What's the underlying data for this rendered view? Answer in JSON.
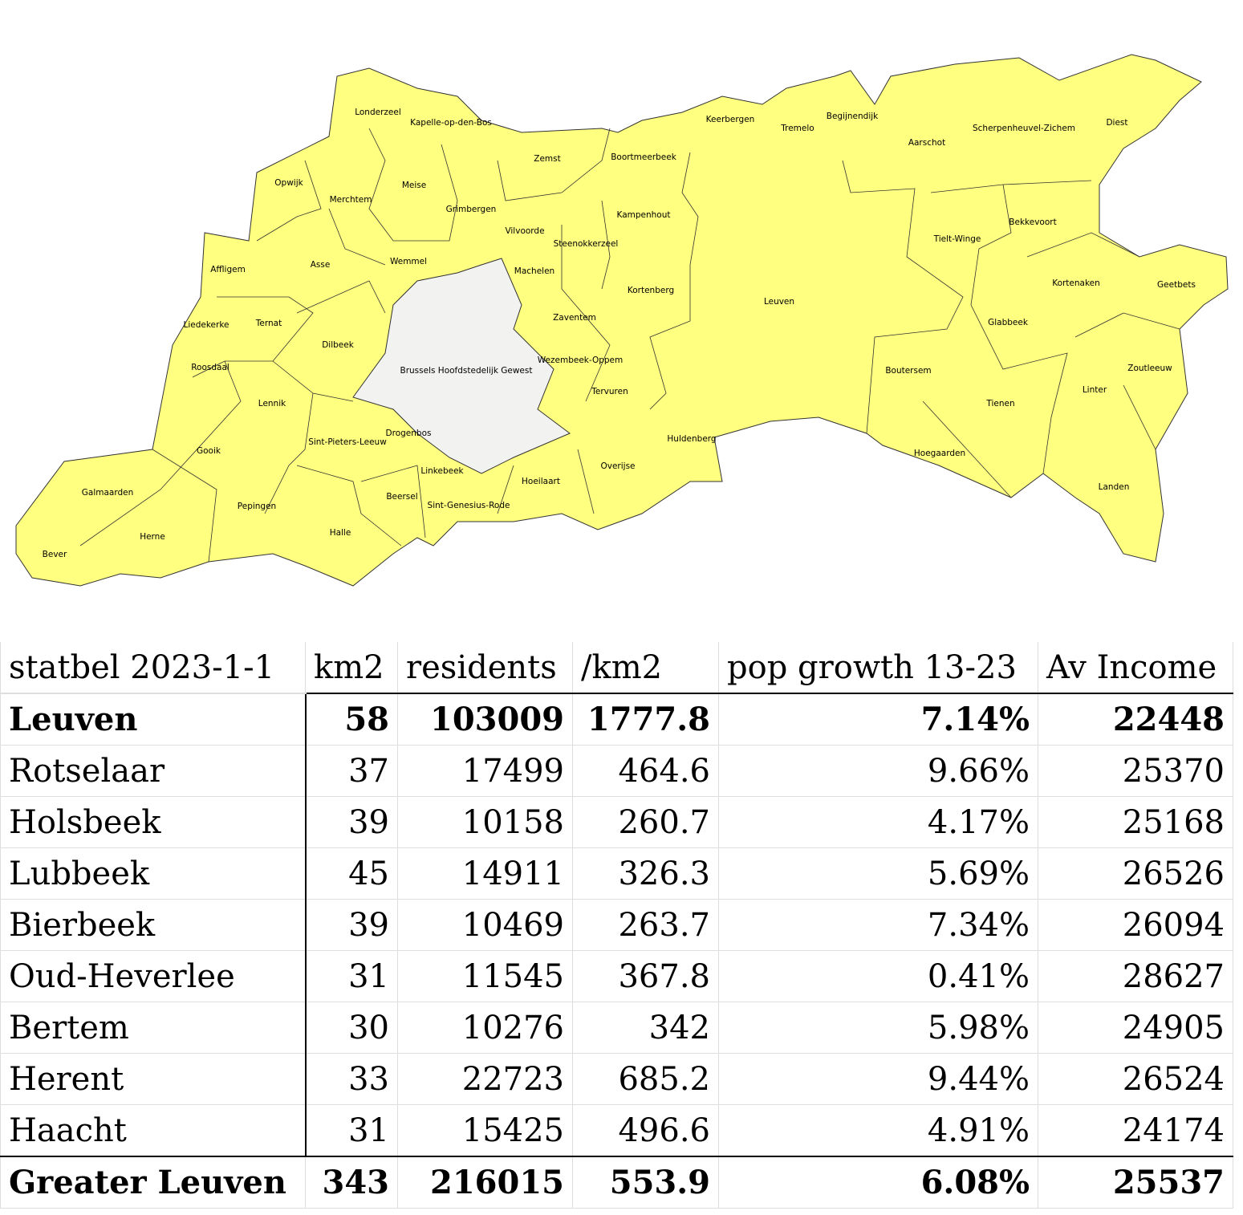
{
  "map": {
    "labels": [
      "Londerzeel",
      "Kapelle-op-den-Bos",
      "Keerbergen",
      "Tremelo",
      "Begijnendijk",
      "Aarschot",
      "Scherpenheuvel-Zichem",
      "Diest",
      "Opwijk",
      "Merchtem",
      "Meise",
      "Grimbergen",
      "Zemst",
      "Boortmeerbeek",
      "Kampenhout",
      "Vilvoorde",
      "Steenokkerzeel",
      "Tielt-Winge",
      "Bekkevoort",
      "Affligem",
      "Asse",
      "Wemmel",
      "Machelen",
      "Kortenberg",
      "Leuven",
      "Kortenaken",
      "Geetbets",
      "Liedekerke",
      "Ternat",
      "Dilbeek",
      "Zaventem",
      "Glabbeek",
      "Brussels Hoofdstedelijk Gewest",
      "Wezembeek-Oppem",
      "Roosdaal",
      "Boutersem",
      "Zoutleeuw",
      "Lennik",
      "Tervuren",
      "Linter",
      "Tienen",
      "Drogenbos",
      "Huldenberg",
      "Sint-Pieters-Leeuw",
      "Gooik",
      "Hoegaarden",
      "Linkebeek",
      "Overijse",
      "Hoeilaart",
      "Landen",
      "Galmaarden",
      "Beersel",
      "Sint-Genesius-Rode",
      "Pepingen",
      "Halle",
      "Herne",
      "Bever"
    ]
  },
  "table": {
    "header": [
      "statbel 2023-1-1",
      "km2",
      "residents",
      "/km2",
      "pop growth 13-23",
      "Av Income"
    ],
    "rows": [
      [
        "Leuven",
        58,
        103009,
        1777.8,
        "7.14%",
        22448
      ],
      [
        "Rotselaar",
        37,
        17499,
        464.6,
        "9.66%",
        25370
      ],
      [
        "Holsbeek",
        39,
        10158,
        260.7,
        "4.17%",
        25168
      ],
      [
        "Lubbeek",
        45,
        14911,
        326.3,
        "5.69%",
        26526
      ],
      [
        "Bierbeek",
        39,
        10469,
        263.7,
        "7.34%",
        26094
      ],
      [
        "Oud-Heverlee",
        31,
        11545,
        367.8,
        "0.41%",
        28627
      ],
      [
        "Bertem",
        30,
        10276,
        342,
        "5.98%",
        24905
      ],
      [
        "Herent",
        33,
        22723,
        685.2,
        "9.44%",
        26524
      ],
      [
        "Haacht",
        31,
        15425,
        496.6,
        "4.91%",
        24174
      ],
      [
        "Greater Leuven",
        343,
        216015,
        553.9,
        "6.08%",
        25537
      ]
    ]
  }
}
